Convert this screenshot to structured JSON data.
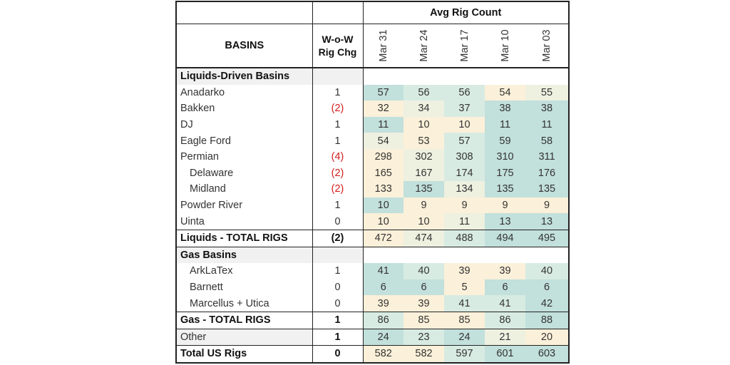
{
  "header": {
    "avg_rig_count": "Avg Rig Count",
    "basins": "BASINS",
    "wow_line1": "W-o-W",
    "wow_line2": "Rig Chg",
    "weeks": [
      "Mar 31",
      "Mar 24",
      "Mar 17",
      "Mar 10",
      "Mar 03"
    ]
  },
  "colors": {
    "teal_dark": "#a9d3d3",
    "teal": "#c2e0dc",
    "teal_light": "#d8ebe2",
    "cream": "#fbf0d9",
    "red": "#d42020"
  },
  "rows": [
    {
      "type": "section",
      "name": "Liquids-Driven Basins"
    },
    {
      "type": "row",
      "name": "Anadarko",
      "chg": "1",
      "values": [
        "57",
        "56",
        "56",
        "54",
        "55"
      ],
      "shades": [
        "teal",
        "teal_light",
        "teal_light",
        "cream",
        "cream_light"
      ]
    },
    {
      "type": "row",
      "name": "Bakken",
      "chg": "(2)",
      "neg": true,
      "values": [
        "32",
        "34",
        "37",
        "38",
        "38"
      ],
      "shades": [
        "cream",
        "cream_light",
        "teal_light",
        "teal",
        "teal"
      ]
    },
    {
      "type": "row",
      "name": "DJ",
      "chg": "1",
      "values": [
        "11",
        "10",
        "10",
        "11",
        "11"
      ],
      "shades": [
        "teal",
        "cream",
        "cream",
        "teal",
        "teal"
      ]
    },
    {
      "type": "row",
      "name": "Eagle Ford",
      "chg": "1",
      "values": [
        "54",
        "53",
        "57",
        "59",
        "58"
      ],
      "shades": [
        "cream_light",
        "cream",
        "teal_light",
        "teal",
        "teal"
      ]
    },
    {
      "type": "row",
      "name": "Permian",
      "chg": "(4)",
      "neg": true,
      "values": [
        "298",
        "302",
        "308",
        "310",
        "311"
      ],
      "shades": [
        "cream",
        "cream_light",
        "teal_light",
        "teal",
        "teal"
      ]
    },
    {
      "type": "row",
      "name": "Delaware",
      "indent": true,
      "chg": "(2)",
      "neg": true,
      "values": [
        "165",
        "167",
        "174",
        "175",
        "176"
      ],
      "shades": [
        "cream",
        "cream_light",
        "teal_light",
        "teal",
        "teal"
      ]
    },
    {
      "type": "row",
      "name": "Midland",
      "indent": true,
      "chg": "(2)",
      "neg": true,
      "values": [
        "133",
        "135",
        "134",
        "135",
        "135"
      ],
      "shades": [
        "cream",
        "teal",
        "cream_light",
        "teal",
        "teal"
      ]
    },
    {
      "type": "row",
      "name": "Powder River",
      "chg": "1",
      "values": [
        "10",
        "9",
        "9",
        "9",
        "9"
      ],
      "shades": [
        "teal",
        "cream",
        "cream",
        "cream",
        "cream"
      ]
    },
    {
      "type": "row",
      "name": "Uinta",
      "chg": "0",
      "values": [
        "10",
        "10",
        "11",
        "13",
        "13"
      ],
      "shades": [
        "cream",
        "cream",
        "cream_light",
        "teal",
        "teal"
      ]
    },
    {
      "type": "total",
      "name": "Liquids - TOTAL RIGS",
      "chg": "(2)",
      "neg": true,
      "values": [
        "472",
        "474",
        "488",
        "494",
        "495"
      ],
      "shades": [
        "cream",
        "cream_light",
        "teal_light",
        "teal",
        "teal"
      ]
    },
    {
      "type": "section",
      "name": "Gas Basins"
    },
    {
      "type": "row",
      "name": "ArkLaTex",
      "indent": true,
      "chg": "1",
      "values": [
        "41",
        "40",
        "39",
        "39",
        "40"
      ],
      "shades": [
        "teal",
        "teal_light",
        "cream",
        "cream",
        "teal_light"
      ]
    },
    {
      "type": "row",
      "name": "Barnett",
      "indent": true,
      "chg": "0",
      "values": [
        "6",
        "6",
        "5",
        "6",
        "6"
      ],
      "shades": [
        "teal",
        "teal",
        "cream",
        "teal",
        "teal"
      ]
    },
    {
      "type": "row",
      "name": "Marcellus + Utica",
      "indent": true,
      "chg": "0",
      "values": [
        "39",
        "39",
        "41",
        "41",
        "42"
      ],
      "shades": [
        "cream",
        "cream",
        "teal_light",
        "teal_light",
        "teal"
      ]
    },
    {
      "type": "total",
      "name": "Gas - TOTAL RIGS",
      "chg": "1",
      "values": [
        "86",
        "85",
        "85",
        "86",
        "88"
      ],
      "shades": [
        "teal_light",
        "cream",
        "cream",
        "teal_light",
        "teal"
      ]
    },
    {
      "type": "other",
      "name": "Other",
      "chg": "1",
      "values": [
        "24",
        "23",
        "24",
        "21",
        "20"
      ],
      "shades": [
        "teal",
        "teal_light",
        "teal",
        "cream_light",
        "cream"
      ]
    },
    {
      "type": "total",
      "name": "Total US Rigs",
      "chg": "0",
      "values": [
        "582",
        "582",
        "597",
        "601",
        "603"
      ],
      "shades": [
        "cream",
        "cream",
        "teal_light",
        "teal",
        "teal"
      ]
    }
  ]
}
